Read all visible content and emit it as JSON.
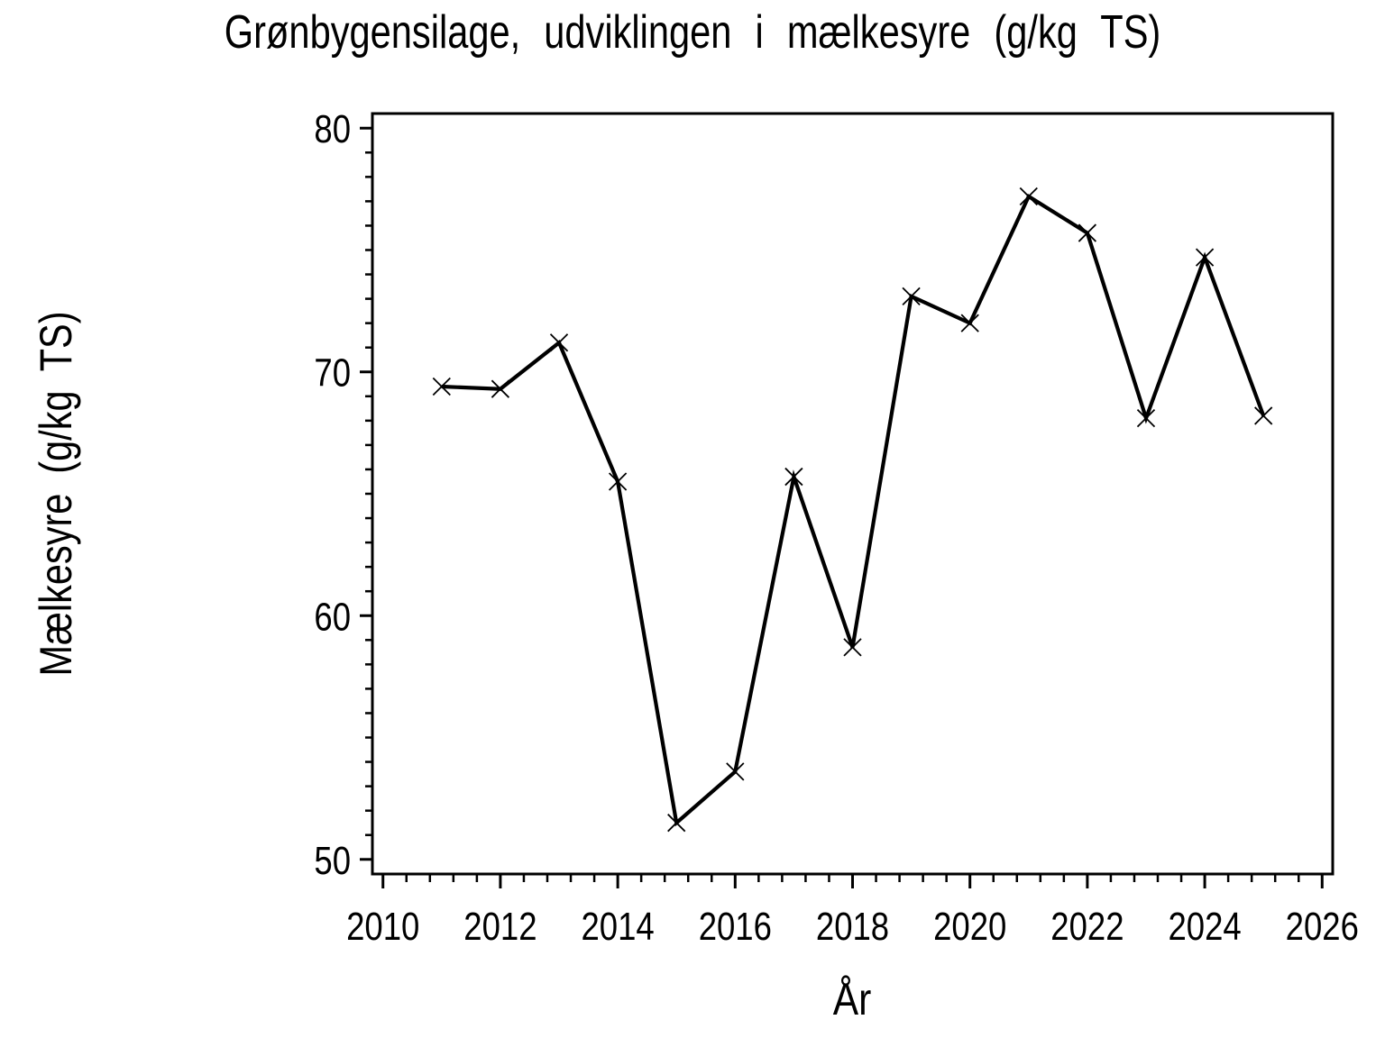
{
  "page": {
    "background_color": "#ffffff",
    "foreground_color": "#000000"
  },
  "chart_data": {
    "type": "line",
    "title": "Grønbygensilage, udviklingen i mælkesyre (g/kg TS)",
    "xlabel": "År",
    "ylabel": "Mælkesyre (g/kg TS)",
    "x": [
      2011,
      2012,
      2013,
      2014,
      2015,
      2016,
      2017,
      2018,
      2019,
      2020,
      2021,
      2022,
      2023,
      2024,
      2025
    ],
    "series": [
      {
        "name": "Mælkesyre",
        "values": [
          69.4,
          69.3,
          71.2,
          65.5,
          51.5,
          53.6,
          65.7,
          58.7,
          73.1,
          72.0,
          77.2,
          75.7,
          68.1,
          74.7,
          68.2
        ]
      }
    ],
    "x_ticks_major": [
      2010,
      2012,
      2014,
      2016,
      2018,
      2020,
      2022,
      2024,
      2026
    ],
    "x_tick_labels": [
      "2010",
      "2012",
      "2014",
      "2016",
      "2018",
      "2020",
      "2022",
      "2024",
      "2026"
    ],
    "x_minor_divisions_per_major": 5,
    "y_ticks_major": [
      50,
      60,
      70,
      80
    ],
    "y_tick_labels": [
      "50",
      "60",
      "70",
      "80"
    ],
    "y_minor_step": 1,
    "xlim": [
      2009.82,
      2026.18
    ],
    "ylim": [
      49.4,
      80.6
    ],
    "marker": "x",
    "line_color": "#000000",
    "marker_color": "#000000",
    "grid": false,
    "legend_position": "none"
  }
}
